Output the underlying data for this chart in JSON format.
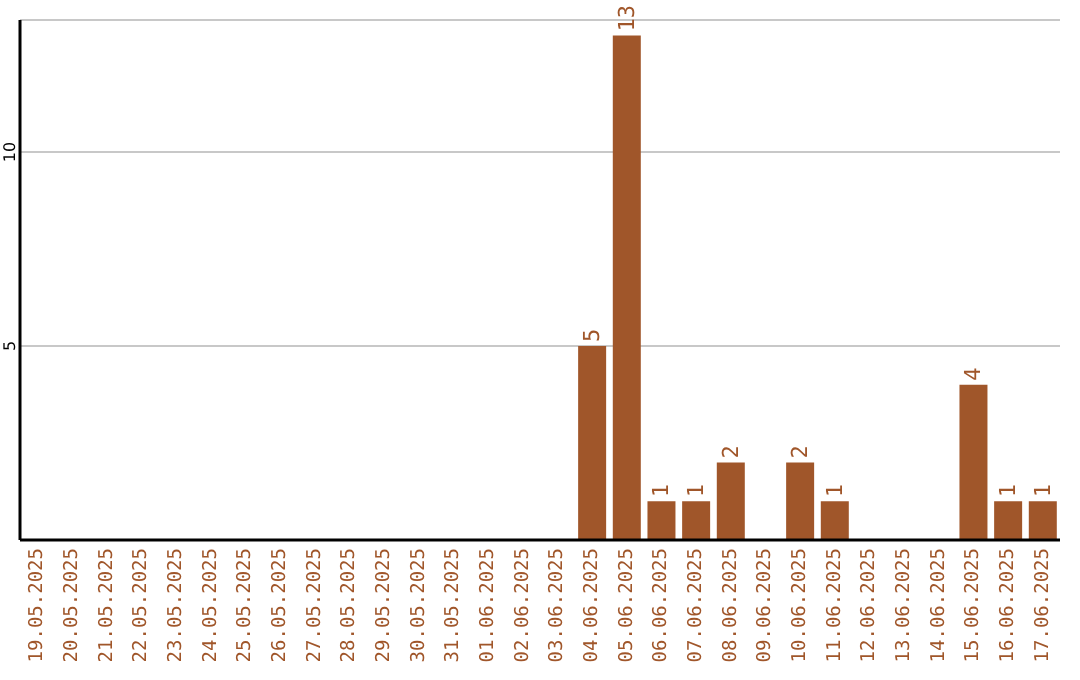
{
  "chart_data": {
    "type": "bar",
    "categories": [
      "19.05.2025",
      "20.05.2025",
      "21.05.2025",
      "22.05.2025",
      "23.05.2025",
      "24.05.2025",
      "25.05.2025",
      "26.05.2025",
      "27.05.2025",
      "28.05.2025",
      "29.05.2025",
      "30.05.2025",
      "31.05.2025",
      "01.06.2025",
      "02.06.2025",
      "03.06.2025",
      "04.06.2025",
      "05.06.2025",
      "06.06.2025",
      "07.06.2025",
      "08.06.2025",
      "09.06.2025",
      "10.06.2025",
      "11.06.2025",
      "12.06.2025",
      "13.06.2025",
      "14.06.2025",
      "15.06.2025",
      "16.06.2025",
      "17.06.2025"
    ],
    "values": [
      0,
      0,
      0,
      0,
      0,
      0,
      0,
      0,
      0,
      0,
      0,
      0,
      0,
      0,
      0,
      0,
      5,
      13,
      1,
      1,
      2,
      0,
      2,
      1,
      0,
      0,
      0,
      4,
      1,
      1
    ],
    "value_labels": [
      null,
      null,
      null,
      null,
      null,
      null,
      null,
      null,
      null,
      null,
      null,
      null,
      null,
      null,
      null,
      null,
      "5",
      "13",
      "1",
      "1",
      "2",
      null,
      "2",
      "1",
      null,
      null,
      null,
      "4",
      "1",
      "1"
    ],
    "color": "#a0562a",
    "ylim": [
      0,
      13.4
    ],
    "yticks": [
      5,
      10
    ],
    "grid": "y"
  }
}
